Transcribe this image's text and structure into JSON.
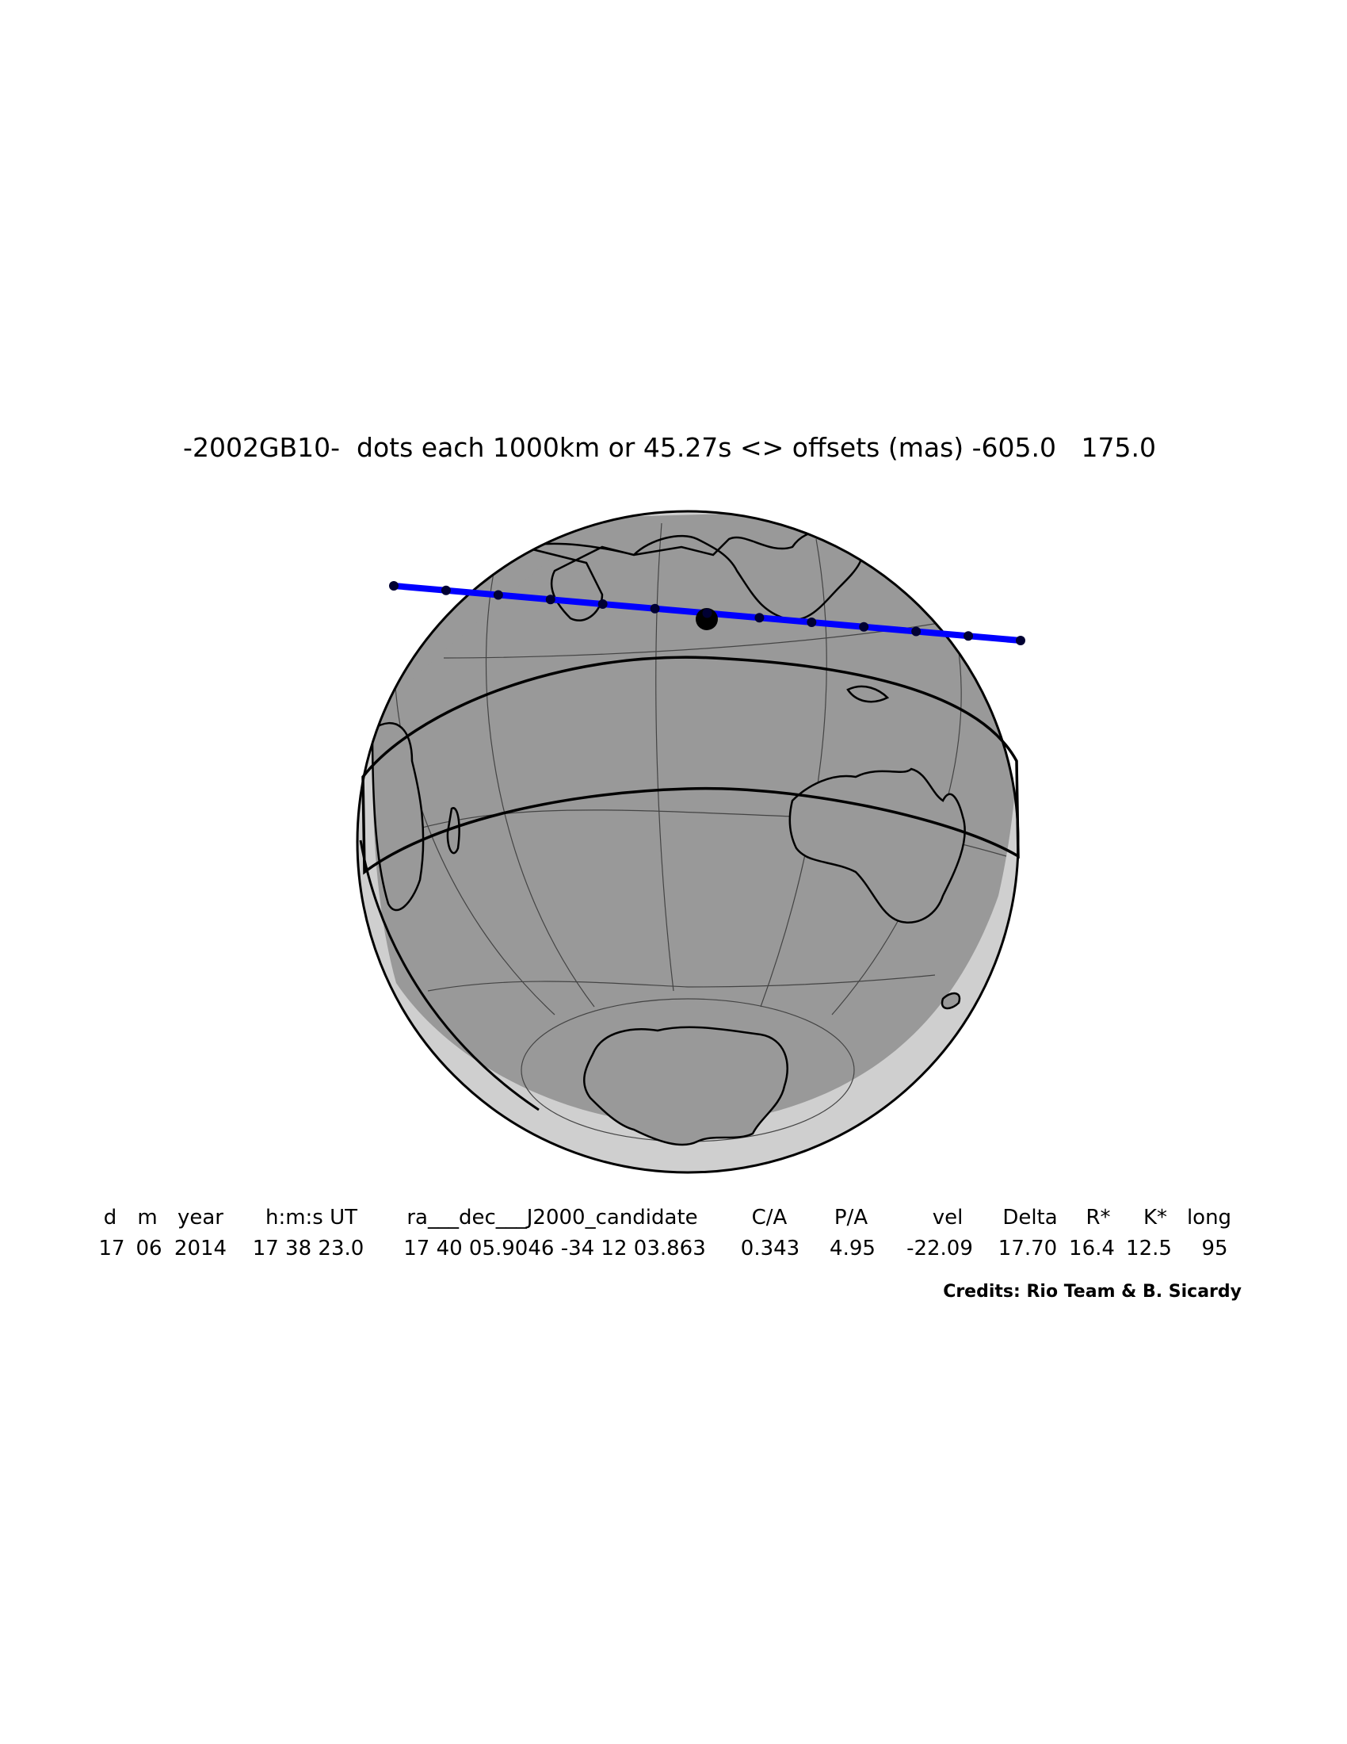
{
  "title": "-2002GB10-  dots each 1000km or 45.27s <> offsets (mas) -605.0   175.0",
  "table": {
    "header": [
      "d",
      "m",
      "year",
      "h:m:s UT",
      "ra___dec___J2000_candidate",
      "C/A",
      "P/A",
      "vel",
      "Delta",
      "R*",
      "K*",
      "long"
    ],
    "rows": [
      [
        "17",
        "06",
        "2014",
        "17 38 23.0",
        "17 40 05.9046 -34 12 03.863",
        "0.343",
        "4.95",
        "-22.09",
        "17.70",
        "16.4",
        "12.5",
        "95"
      ]
    ]
  },
  "credits": "Credits: Rio Team & B. Sicardy"
}
